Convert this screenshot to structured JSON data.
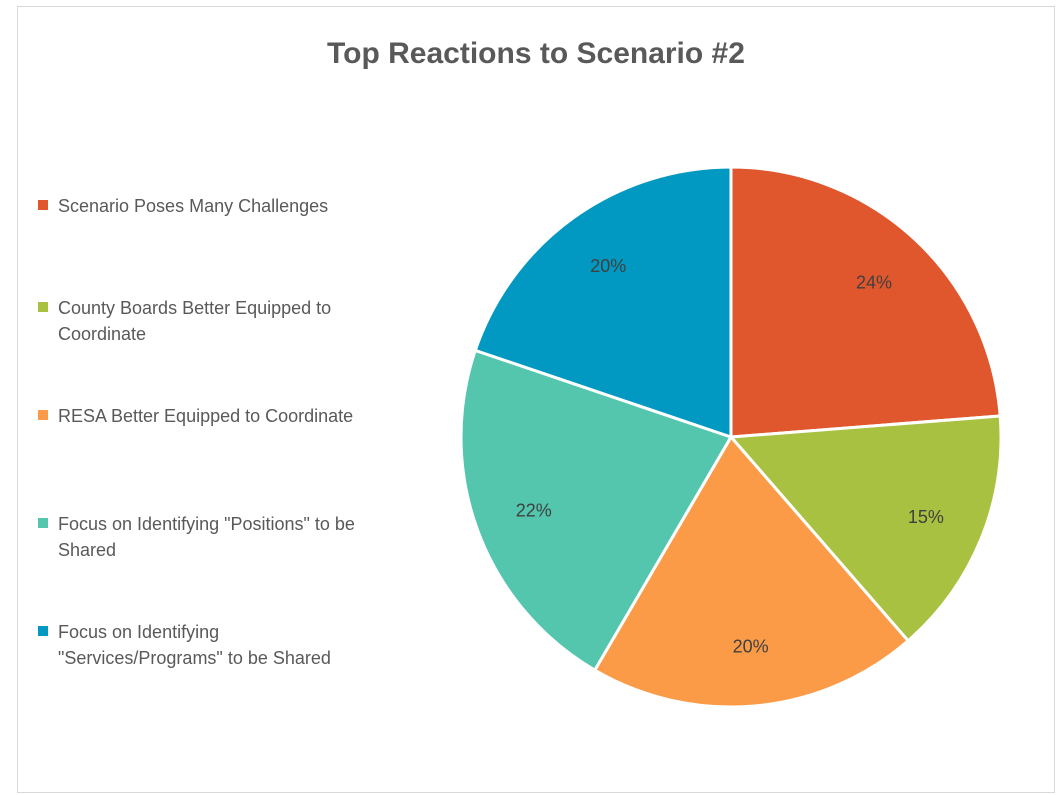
{
  "chart_data": {
    "type": "pie",
    "title": "Top Reactions to Scenario #2",
    "categories": [
      "Scenario Poses Many Challenges",
      "County Boards Better Equipped to Coordinate",
      "RESA Better Equipped to Coordinate",
      "Focus on Identifying \"Positions\" to be Shared",
      "Focus on Identifying \"Services/Programs\" to be Shared"
    ],
    "values": [
      24,
      15,
      20,
      22,
      20
    ],
    "data_labels": [
      "24%",
      "15%",
      "20%",
      "22%",
      "20%"
    ],
    "colors": [
      "#e0572e",
      "#a9c140",
      "#fb9b48",
      "#53c6ad",
      "#0198c1"
    ],
    "legend_position": "left",
    "start_angle_deg": 0,
    "direction": "clockwise"
  }
}
